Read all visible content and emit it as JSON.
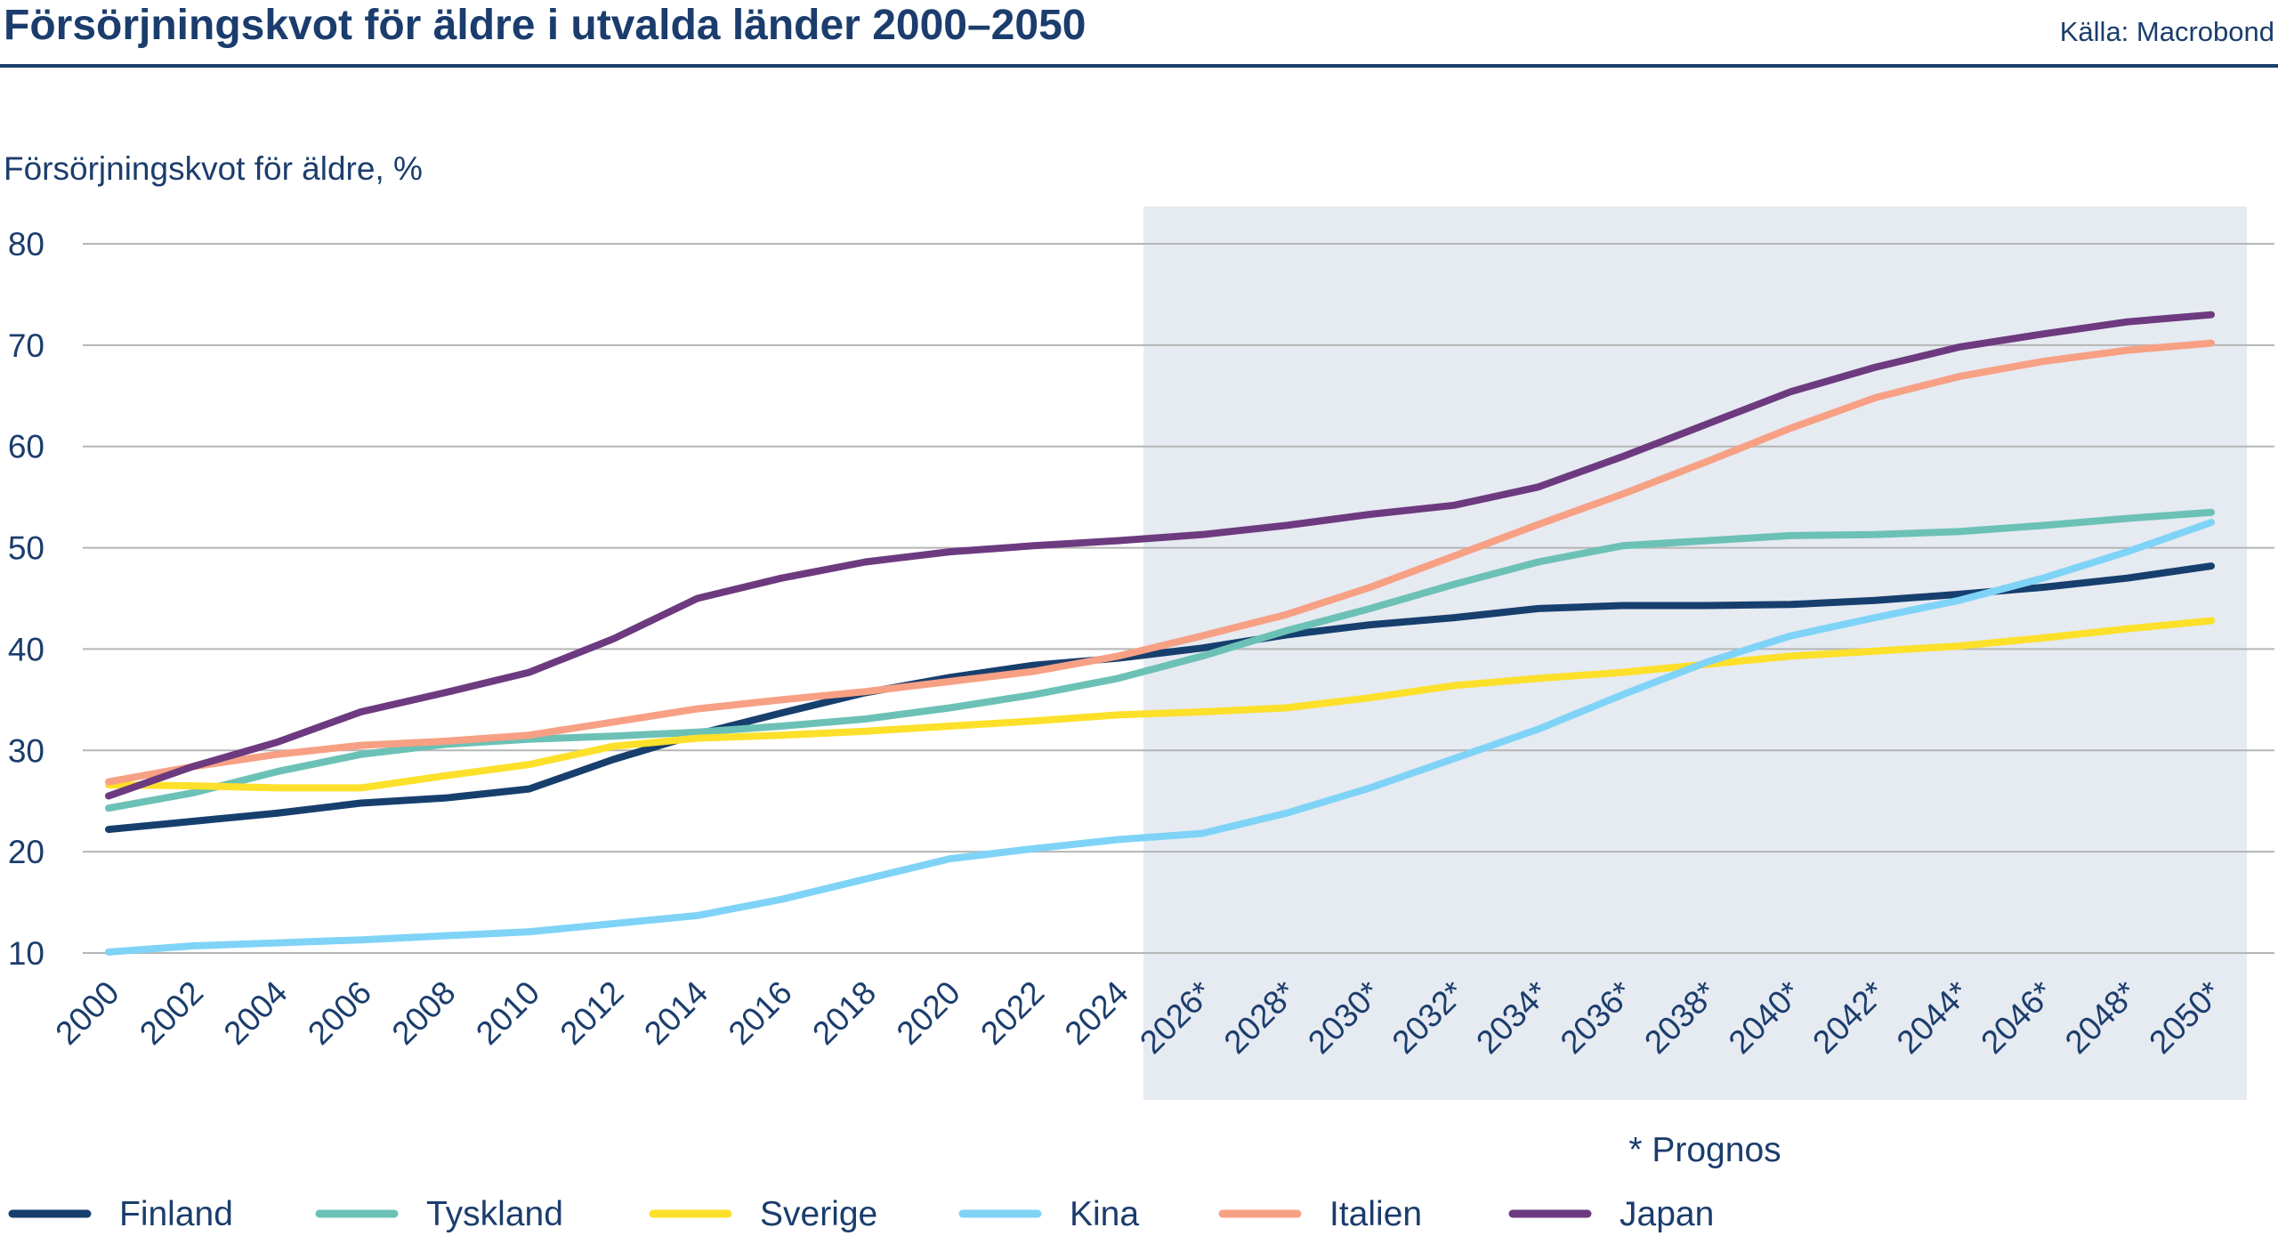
{
  "header": {
    "title": "Försörjningskvot för äldre i utvalda länder 2000–2050",
    "source": "Källa: Macrobond"
  },
  "chart_data": {
    "type": "line",
    "title": "Försörjningskvot för äldre i utvalda länder 2000–2050",
    "ylabel": "Försörjningskvot för äldre, %",
    "xlabel": "",
    "ylim": [
      10,
      80
    ],
    "yticks": [
      10,
      20,
      30,
      40,
      50,
      60,
      70,
      80
    ],
    "grid": true,
    "legend": "bottom",
    "forecast_from": 2025,
    "forecast_note": "* Prognos",
    "categories": [
      "2000",
      "2002",
      "2004",
      "2006",
      "2008",
      "2010",
      "2012",
      "2014",
      "2016",
      "2018",
      "2020",
      "2022",
      "2024",
      "2026*",
      "2028*",
      "2030*",
      "2032*",
      "2034*",
      "2036*",
      "2038*",
      "2040*",
      "2042*",
      "2044*",
      "2046*",
      "2048*",
      "2050*"
    ],
    "x": [
      2000,
      2002,
      2004,
      2006,
      2008,
      2010,
      2012,
      2014,
      2016,
      2018,
      2020,
      2022,
      2024,
      2026,
      2028,
      2030,
      2032,
      2034,
      2036,
      2038,
      2040,
      2042,
      2044,
      2046,
      2048,
      2050
    ],
    "series": [
      {
        "name": "Finland",
        "color": "#173f6e",
        "values": [
          22.2,
          23.0,
          23.8,
          24.8,
          25.3,
          26.2,
          29.1,
          31.6,
          33.7,
          35.7,
          37.2,
          38.4,
          39.1,
          40.1,
          41.4,
          42.4,
          43.1,
          44.0,
          44.3,
          44.3,
          44.4,
          44.8,
          45.4,
          46.1,
          47.0,
          48.2
        ]
      },
      {
        "name": "Tyskland",
        "color": "#6cc1b6",
        "values": [
          24.3,
          25.8,
          27.9,
          29.6,
          30.6,
          31.1,
          31.4,
          31.8,
          32.4,
          33.1,
          34.2,
          35.5,
          37.1,
          39.3,
          41.8,
          44.0,
          46.4,
          48.6,
          50.2,
          50.7,
          51.2,
          51.3,
          51.6,
          52.2,
          52.9,
          53.5
        ]
      },
      {
        "name": "Sverige",
        "color": "#fde02a",
        "values": [
          26.6,
          26.5,
          26.3,
          26.3,
          27.5,
          28.6,
          30.4,
          31.2,
          31.5,
          31.9,
          32.4,
          32.9,
          33.5,
          33.8,
          34.2,
          35.2,
          36.4,
          37.1,
          37.7,
          38.5,
          39.3,
          39.8,
          40.3,
          41.1,
          42.0,
          42.8
        ]
      },
      {
        "name": "Kina",
        "color": "#7fd3f7",
        "values": [
          10.1,
          10.7,
          11.0,
          11.3,
          11.7,
          12.1,
          12.9,
          13.7,
          15.3,
          17.3,
          19.3,
          20.3,
          21.2,
          21.8,
          23.8,
          26.3,
          29.2,
          32.1,
          35.5,
          38.7,
          41.3,
          43.1,
          44.8,
          47.0,
          49.6,
          52.5
        ]
      },
      {
        "name": "Italien",
        "color": "#f7a084",
        "values": [
          26.9,
          28.4,
          29.6,
          30.5,
          30.9,
          31.5,
          32.8,
          34.1,
          35.0,
          35.8,
          36.8,
          37.8,
          39.3,
          41.3,
          43.4,
          46.1,
          49.2,
          52.3,
          55.3,
          58.5,
          61.8,
          64.8,
          66.9,
          68.4,
          69.5,
          70.2
        ]
      },
      {
        "name": "Japan",
        "color": "#6d3a80",
        "values": [
          25.5,
          28.4,
          30.8,
          33.8,
          35.7,
          37.7,
          41.0,
          45.0,
          47.0,
          48.6,
          49.6,
          50.2,
          50.7,
          51.3,
          52.2,
          53.3,
          54.2,
          56.0,
          59.0,
          62.2,
          65.4,
          67.8,
          69.8,
          71.1,
          72.3,
          73.0
        ]
      }
    ]
  }
}
